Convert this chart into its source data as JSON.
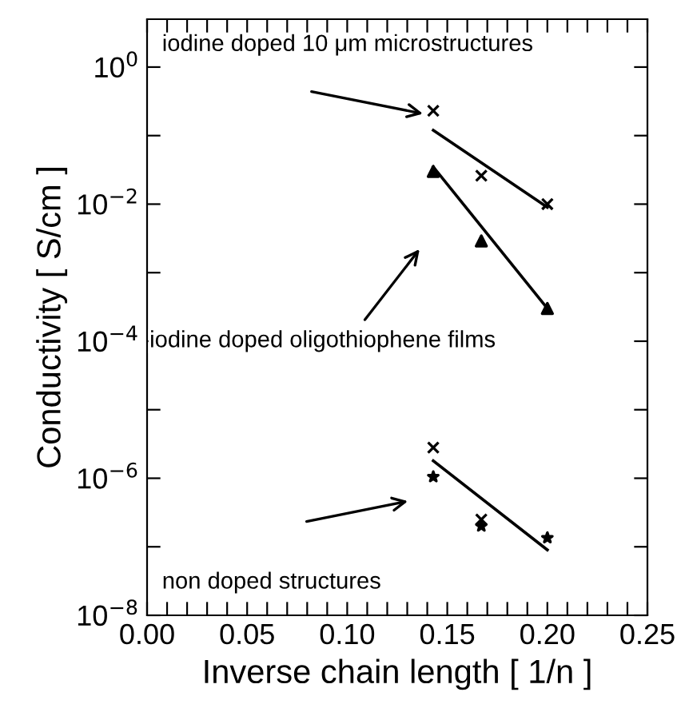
{
  "chart_data": {
    "type": "scatter",
    "xlabel": "Inverse chain length [ 1/n ]",
    "ylabel": "Conductivity [ S/cm ]",
    "log": "y",
    "grid": false,
    "legend": false,
    "xlim": [
      0,
      0.25
    ],
    "ylim": [
      1e-08,
      5
    ],
    "xticks": [
      {
        "value": 0,
        "label": "0.00"
      },
      {
        "value": 0.01,
        "label": null
      },
      {
        "value": 0.02,
        "label": null
      },
      {
        "value": 0.03,
        "label": null
      },
      {
        "value": 0.04,
        "label": null
      },
      {
        "value": 0.05,
        "label": "0.05"
      },
      {
        "value": 0.06,
        "label": null
      },
      {
        "value": 0.07,
        "label": null
      },
      {
        "value": 0.08,
        "label": null
      },
      {
        "value": 0.09,
        "label": null
      },
      {
        "value": 0.1,
        "label": "0.10"
      },
      {
        "value": 0.11,
        "label": null
      },
      {
        "value": 0.12,
        "label": null
      },
      {
        "value": 0.13,
        "label": null
      },
      {
        "value": 0.14,
        "label": null
      },
      {
        "value": 0.15,
        "label": "0.15"
      },
      {
        "value": 0.16,
        "label": null
      },
      {
        "value": 0.17,
        "label": null
      },
      {
        "value": 0.18,
        "label": null
      },
      {
        "value": 0.19,
        "label": null
      },
      {
        "value": 0.2,
        "label": "0.20"
      },
      {
        "value": 0.21,
        "label": null
      },
      {
        "value": 0.22,
        "label": null
      },
      {
        "value": 0.23,
        "label": null
      },
      {
        "value": 0.24,
        "label": null
      },
      {
        "value": 0.25,
        "label": "0.25"
      }
    ],
    "yticks": [
      {
        "value": 1e-08,
        "label": "10$^{−8}$"
      },
      {
        "value": 1e-07,
        "label": null
      },
      {
        "value": 1e-06,
        "label": "10$^{−6}$"
      },
      {
        "value": 1e-05,
        "label": null
      },
      {
        "value": 0.0001,
        "label": "10$^{−4}$"
      },
      {
        "value": 0.001,
        "label": null
      },
      {
        "value": 0.01,
        "label": "10$^{−2}$"
      },
      {
        "value": 0.1,
        "label": null
      },
      {
        "value": 1,
        "label": "10$^{0}$"
      }
    ],
    "series": [
      {
        "marker": "cross",
        "color": "#000000",
        "x": [
          0.143,
          0.167,
          0.2
        ],
        "values": [
          0.23,
          0.026,
          0.01
        ]
      },
      {
        "type": "line",
        "marker": "none",
        "color": "#000000",
        "x": [
          0.143,
          0.2
        ],
        "values": [
          0.12,
          0.009
        ]
      },
      {
        "marker": "triangle",
        "color": "#000000",
        "x": [
          0.143,
          0.167,
          0.2
        ],
        "values": [
          0.03,
          0.0029,
          0.0003
        ]
      },
      {
        "type": "line",
        "marker": "none",
        "color": "#000000",
        "x": [
          0.143,
          0.2
        ],
        "values": [
          0.035,
          0.0003
        ]
      },
      {
        "marker": "cross",
        "color": "#000000",
        "x": [
          0.143,
          0.167
        ],
        "values": [
          2.8e-06,
          2.5e-07
        ]
      },
      {
        "marker": "star",
        "color": "#000000",
        "x": [
          0.143,
          0.167,
          0.2
        ],
        "values": [
          1.05e-06,
          2e-07,
          1.35e-07
        ]
      },
      {
        "type": "line",
        "marker": "none",
        "color": "#000000",
        "x": [
          0.143,
          0.2
        ],
        "values": [
          1.8e-06,
          9e-08
        ]
      }
    ],
    "annotations": [
      "iodine doped 10 μm microstructures",
      "iodine doped oligothiophene films",
      "non doped structures"
    ]
  }
}
